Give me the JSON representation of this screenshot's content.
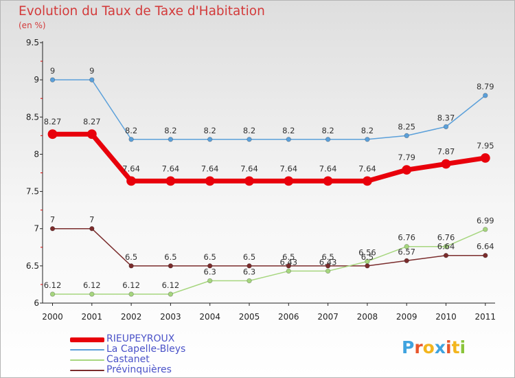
{
  "title": "Evolution du Taux de Taxe d'Habitation",
  "unit": "(en %)",
  "logo": {
    "letters": [
      "P",
      "r",
      "o",
      "x",
      "i",
      "t",
      "i"
    ],
    "colors": [
      "#3fa3df",
      "#e8552b",
      "#f3b51e",
      "#3fa3df",
      "#e8552b",
      "#f3b51e",
      "#8ac43a"
    ]
  },
  "chart_data": {
    "type": "line",
    "x": [
      "2000",
      "2001",
      "2002",
      "2003",
      "2004",
      "2005",
      "2006",
      "2007",
      "2008",
      "2009",
      "2010",
      "2011"
    ],
    "ylim": [
      6,
      9.5
    ],
    "yticks": [
      "6",
      "6.5",
      "7",
      "7.5",
      "8",
      "8.5",
      "9",
      "9.5"
    ],
    "grid": false,
    "legend_position": "bottom-left",
    "series": [
      {
        "name": "RIEUPEYROUX",
        "color": "#e8000b",
        "width": 7,
        "values": [
          8.27,
          8.27,
          7.64,
          7.64,
          7.64,
          7.64,
          7.64,
          7.64,
          7.64,
          7.79,
          7.87,
          7.95
        ],
        "labels": [
          "8.27",
          "8.27",
          "7.64",
          "7.64",
          "7.64",
          "7.64",
          "7.64",
          "7.64",
          "7.64",
          "7.79",
          "7.87",
          "7.95"
        ]
      },
      {
        "name": "La Capelle-Bleys",
        "color": "#5ba0da",
        "width": 1.5,
        "values": [
          9,
          9,
          8.2,
          8.2,
          8.2,
          8.2,
          8.2,
          8.2,
          8.2,
          8.25,
          8.37,
          8.79
        ],
        "labels": [
          "9",
          "9",
          "8.2",
          "8.2",
          "8.2",
          "8.2",
          "8.2",
          "8.2",
          "8.2",
          "8.25",
          "8.37",
          "8.79"
        ]
      },
      {
        "name": "Castanet",
        "color": "#a6d67e",
        "width": 1.5,
        "values": [
          6.12,
          6.12,
          6.12,
          6.12,
          6.3,
          6.3,
          6.43,
          6.43,
          6.56,
          6.76,
          6.76,
          6.99
        ],
        "labels": [
          "6.12",
          "6.12",
          "6.12",
          "6.12",
          "6.3",
          "6.3",
          "6.43",
          "6.43",
          "6.56",
          "6.76",
          "6.76",
          "6.99"
        ]
      },
      {
        "name": "Prévinquières",
        "color": "#7a2c2c",
        "width": 1.5,
        "values": [
          7,
          7,
          6.5,
          6.5,
          6.5,
          6.5,
          6.5,
          6.5,
          6.5,
          6.57,
          6.64,
          6.64
        ],
        "labels": [
          "7",
          "7",
          "6.5",
          "6.5",
          "6.5",
          "6.5",
          "6.5",
          "6.5",
          "6.5",
          "6.57",
          "6.64",
          "6.64"
        ]
      }
    ]
  }
}
